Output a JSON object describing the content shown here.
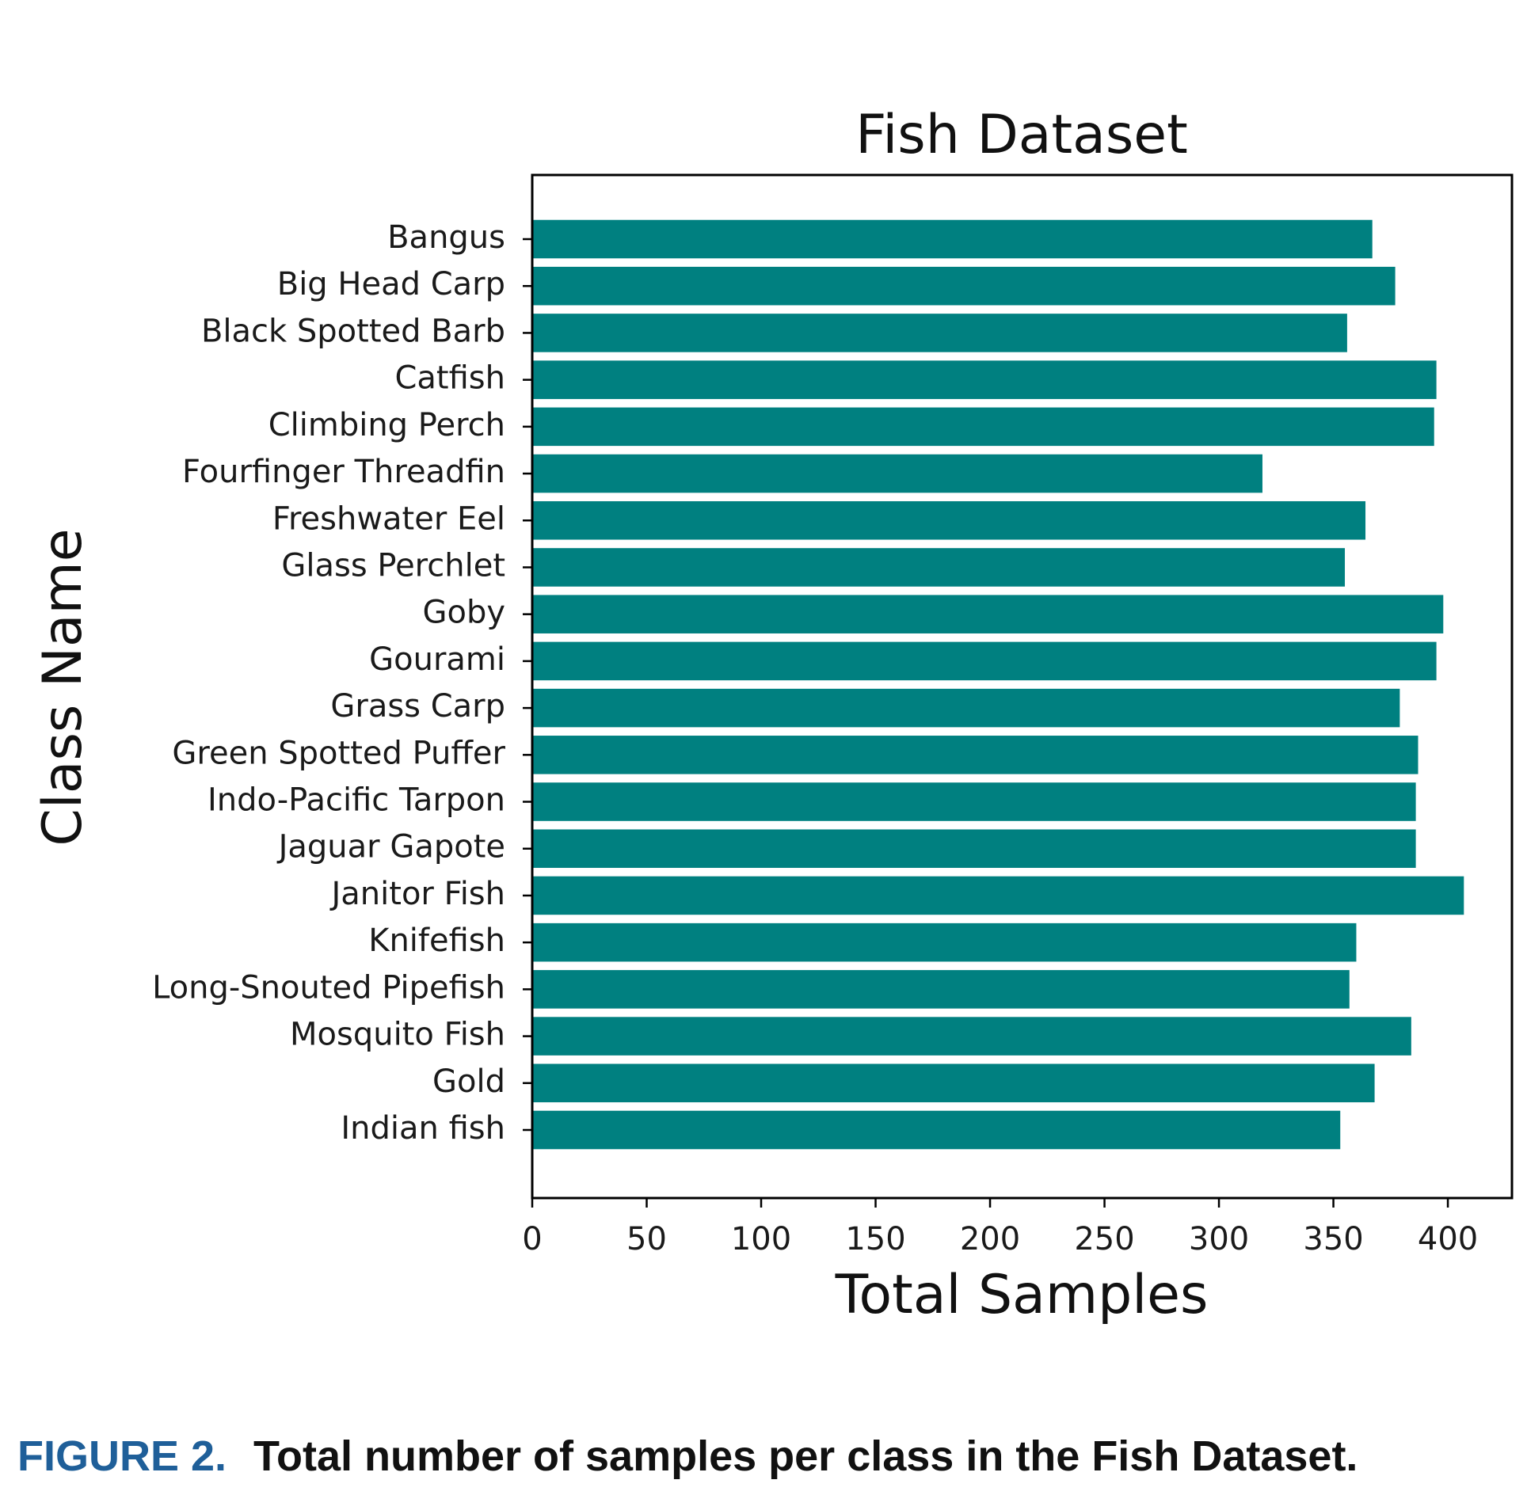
{
  "caption": {
    "figure_label": "FIGURE 2.",
    "text": "Total number of samples per class in the Fish Dataset."
  },
  "colors": {
    "bar": "#008080",
    "axis": "#000000"
  },
  "chart_data": {
    "type": "bar",
    "orientation": "horizontal",
    "title": "Fish Dataset",
    "xlabel": "Total Samples",
    "ylabel": "Class Name",
    "xlim": [
      0,
      428
    ],
    "xticks": [
      0,
      50,
      100,
      150,
      200,
      250,
      300,
      350,
      400
    ],
    "grid": false,
    "categories": [
      "Bangus",
      "Big Head Carp",
      "Black Spotted Barb",
      "Catfish",
      "Climbing Perch",
      "Fourfinger Threadfin",
      "Freshwater Eel",
      "Glass Perchlet",
      "Goby",
      "Gourami",
      "Grass Carp",
      "Green Spotted Puffer",
      "Indo-Pacific Tarpon",
      "Jaguar Gapote",
      "Janitor Fish",
      "Knifefish",
      "Long-Snouted Pipefish",
      "Mosquito Fish",
      "Gold",
      "Indian fish"
    ],
    "values": [
      367,
      377,
      356,
      395,
      394,
      319,
      364,
      355,
      398,
      395,
      379,
      387,
      386,
      386,
      407,
      360,
      357,
      384,
      368,
      353
    ]
  }
}
